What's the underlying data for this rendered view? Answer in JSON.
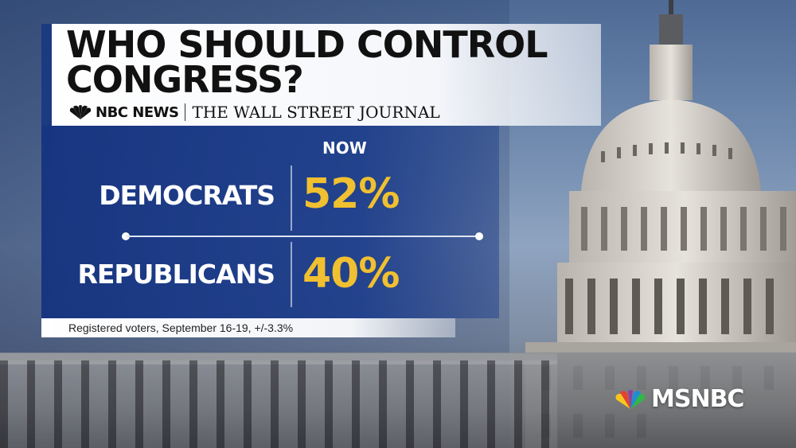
{
  "title": "WHO SHOULD CONTROL CONGRESS?",
  "brands": {
    "nbc": "NBC NEWS",
    "wsj": "THE WALL STREET JOURNAL"
  },
  "results": {
    "column_header": "NOW",
    "rows": [
      {
        "label": "DEMOCRATS",
        "value": "52%"
      },
      {
        "label": "REPUBLICANS",
        "value": "40%"
      }
    ]
  },
  "footnote": "Registered voters, September 16-19, +/-3.3%",
  "network": "MSNBC",
  "colors": {
    "accent_blue": "#1c3a80",
    "value_gold": "#f0c030"
  }
}
